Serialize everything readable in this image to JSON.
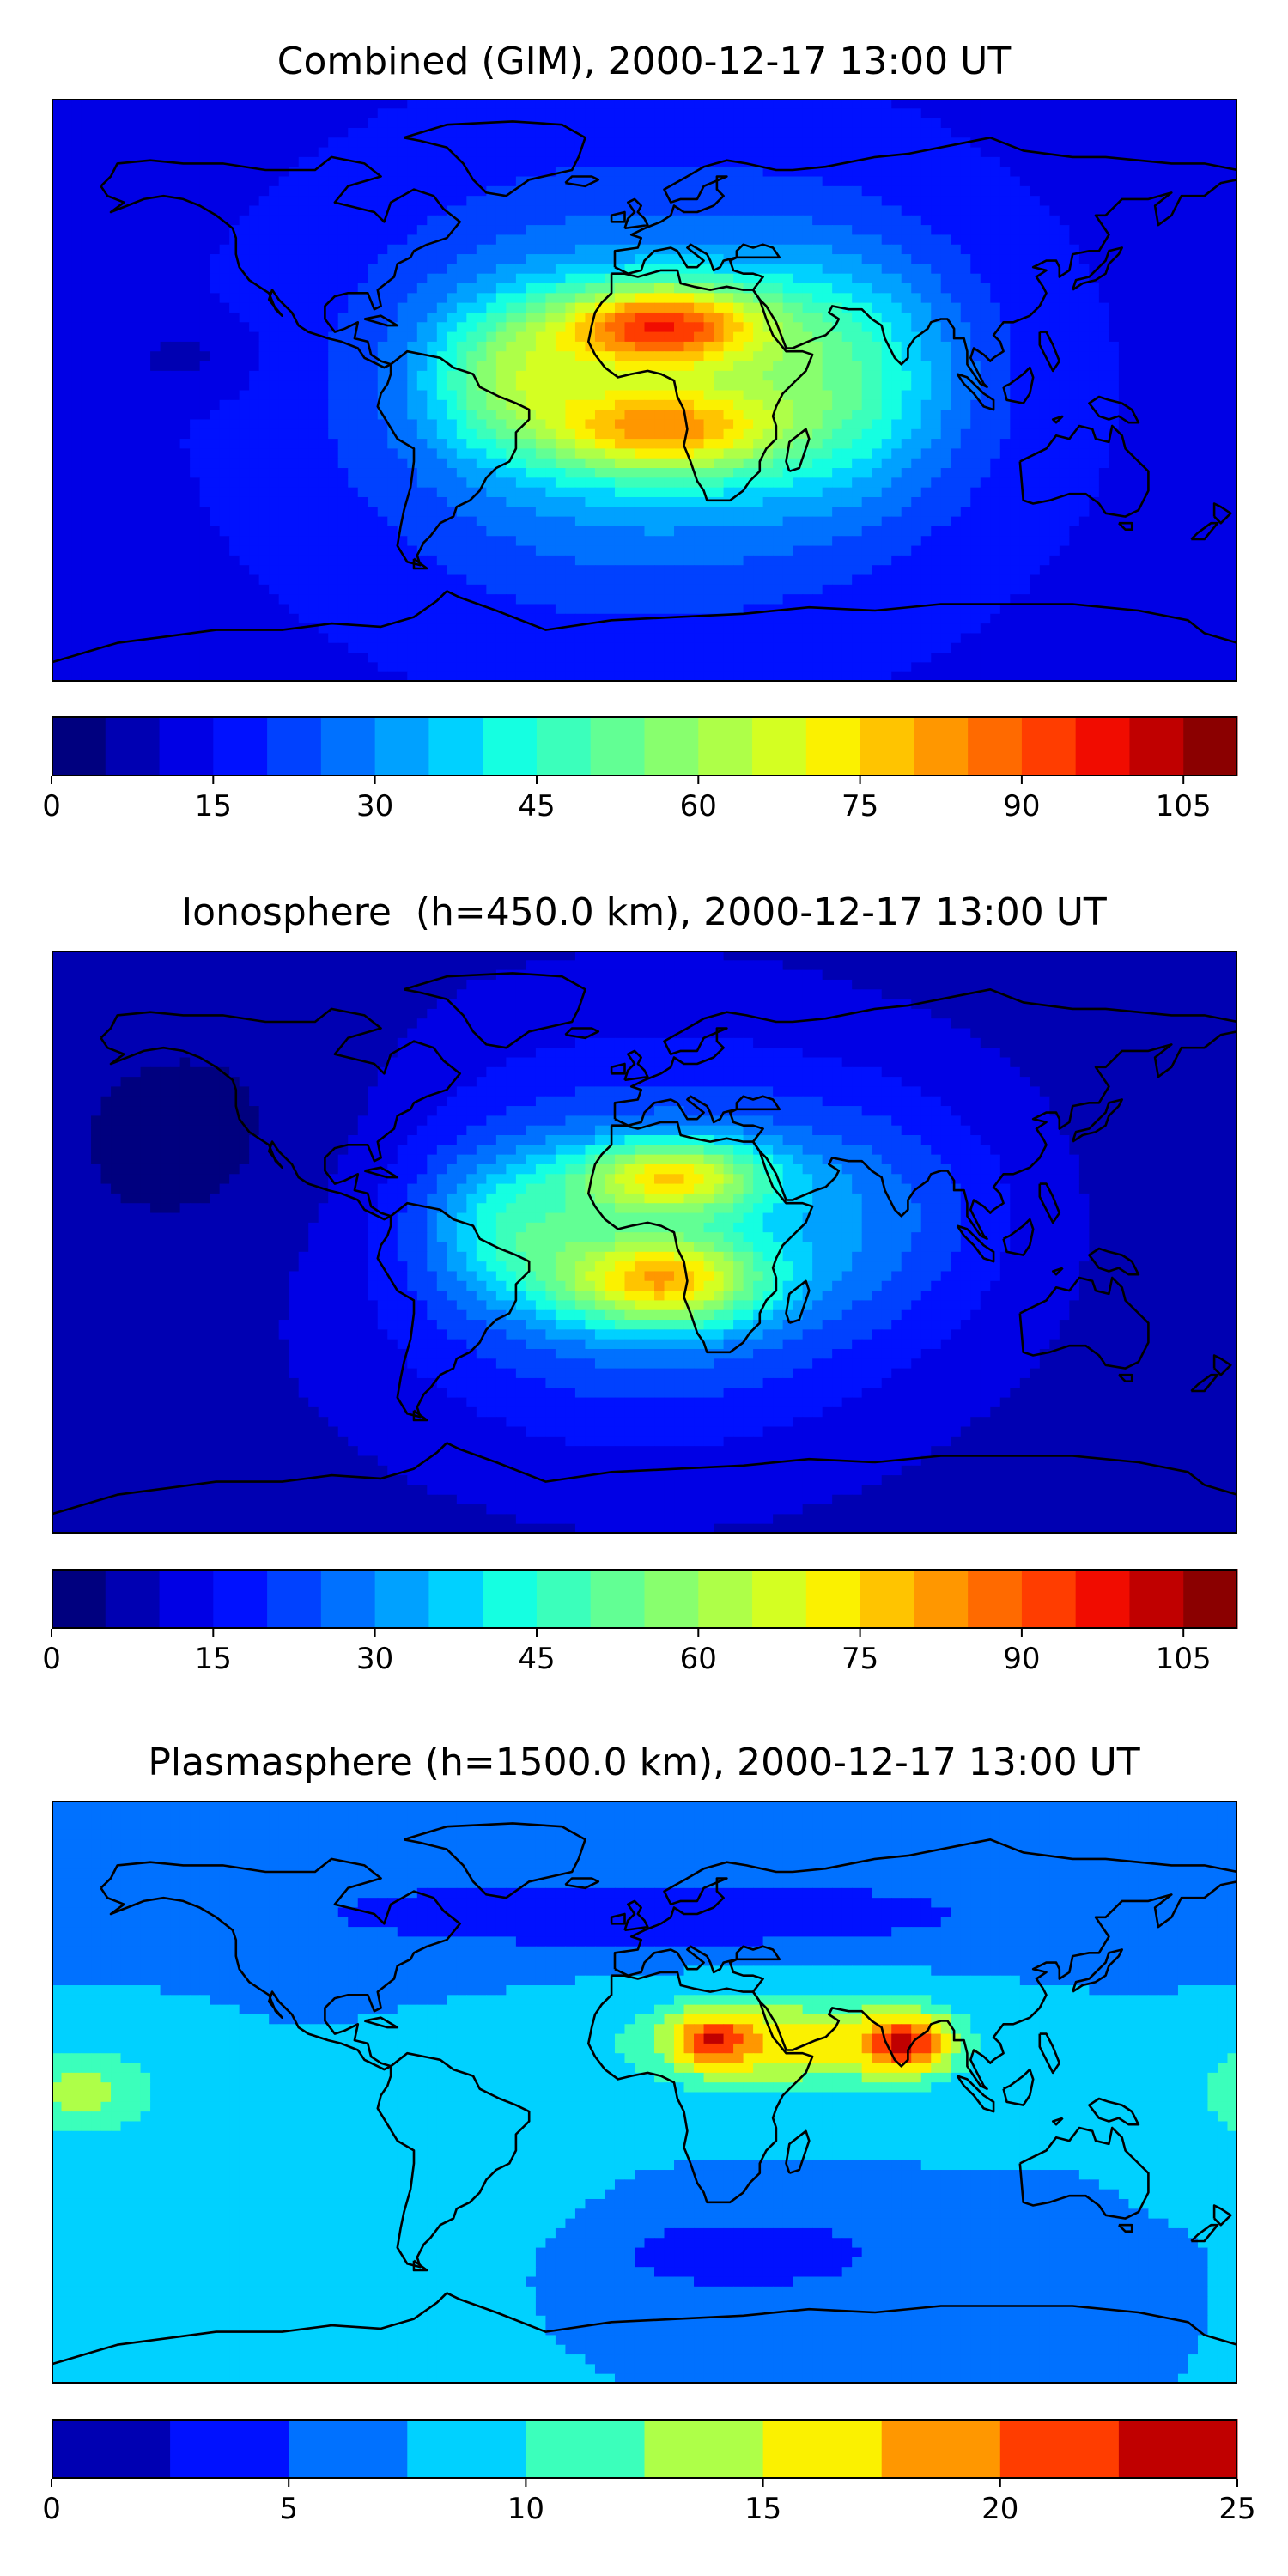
{
  "chart_data": [
    {
      "type": "heatmap",
      "title": "Combined (GIM), 2000-12-17 13:00 UT",
      "colorbar": {
        "min": 0,
        "max": 110,
        "levels": 22,
        "ticks": [
          0,
          15,
          30,
          45,
          60,
          75,
          90,
          105
        ],
        "tick_labels": [
          "0",
          "15",
          "30",
          "45",
          "60",
          "75",
          "90",
          "105"
        ],
        "colors": [
          "#00007f",
          "#0000b2",
          "#0000e5",
          "#0011ff",
          "#0041ff",
          "#0071ff",
          "#00a1ff",
          "#00d1ff",
          "#15ffe1",
          "#3bffbb",
          "#62ff94",
          "#88ff6e",
          "#aeff48",
          "#d4ff22",
          "#fbf100",
          "#ffc400",
          "#ff9700",
          "#ff6a00",
          "#ff3d00",
          "#f10c00",
          "#c00000",
          "#8b0000"
        ]
      },
      "field": {
        "base": 14,
        "blobs": [
          {
            "lon": 0,
            "lat": 0,
            "amp": 28,
            "slon": 55,
            "slat": 40
          },
          {
            "lon": 5,
            "lat": 20,
            "amp": 55,
            "slon": 22,
            "slat": 9
          },
          {
            "lon": 5,
            "lat": -12,
            "amp": 42,
            "slon": 25,
            "slat": 10
          },
          {
            "lon": -40,
            "lat": 5,
            "amp": 25,
            "slon": 18,
            "slat": 15
          },
          {
            "lon": 60,
            "lat": 5,
            "amp": 22,
            "slon": 25,
            "slat": 25
          },
          {
            "lon": -140,
            "lat": 10,
            "amp": -6,
            "slon": 15,
            "slat": 8
          }
        ]
      }
    },
    {
      "type": "heatmap",
      "title": "Ionosphere  (h=450.0 km), 2000-12-17 13:00 UT",
      "colorbar": {
        "min": 0,
        "max": 110,
        "levels": 22,
        "ticks": [
          0,
          15,
          30,
          45,
          60,
          75,
          90,
          105
        ],
        "tick_labels": [
          "0",
          "15",
          "30",
          "45",
          "60",
          "75",
          "90",
          "105"
        ],
        "colors": [
          "#00007f",
          "#0000b2",
          "#0000e5",
          "#0011ff",
          "#0041ff",
          "#0071ff",
          "#00a1ff",
          "#00d1ff",
          "#15ffe1",
          "#3bffbb",
          "#62ff94",
          "#88ff6e",
          "#aeff48",
          "#d4ff22",
          "#fbf100",
          "#ffc400",
          "#ff9700",
          "#ff6a00",
          "#ff3d00",
          "#f10c00",
          "#c00000",
          "#8b0000"
        ]
      },
      "field": {
        "base": 8,
        "blobs": [
          {
            "lon": 0,
            "lat": 0,
            "amp": 25,
            "slon": 55,
            "slat": 40
          },
          {
            "lon": 8,
            "lat": 20,
            "amp": 44,
            "slon": 20,
            "slat": 8
          },
          {
            "lon": 5,
            "lat": -12,
            "amp": 48,
            "slon": 22,
            "slat": 10
          },
          {
            "lon": -40,
            "lat": 5,
            "amp": 20,
            "slon": 18,
            "slat": 15
          },
          {
            "lon": 70,
            "lat": 10,
            "amp": 10,
            "slon": 30,
            "slat": 25
          },
          {
            "lon": -130,
            "lat": 30,
            "amp": -5,
            "slon": 40,
            "slat": 30
          }
        ]
      }
    },
    {
      "type": "heatmap",
      "title": "Plasmasphere (h=1500.0 km), 2000-12-17 13:00 UT",
      "colorbar": {
        "min": 0,
        "max": 25,
        "levels": 10,
        "ticks": [
          0,
          5,
          10,
          15,
          20,
          25
        ],
        "tick_labels": [
          "0",
          "5",
          "10",
          "15",
          "20",
          "25"
        ],
        "colors": [
          "#0000b2",
          "#0011ff",
          "#0071ff",
          "#00d1ff",
          "#3bffbb",
          "#aeff48",
          "#fbf100",
          "#ff9700",
          "#ff3d00",
          "#c00000"
        ]
      },
      "field": {
        "base": 7.5,
        "blobs": [
          {
            "lon": 40,
            "lat": 15,
            "amp": 9,
            "slon": 30,
            "slat": 10
          },
          {
            "lon": 80,
            "lat": 15,
            "amp": 12,
            "slon": 10,
            "slat": 7
          },
          {
            "lon": 20,
            "lat": 16,
            "amp": 8,
            "slon": 8,
            "slat": 6
          },
          {
            "lon": -170,
            "lat": 0,
            "amp": 6,
            "slon": 15,
            "slat": 10
          },
          {
            "lon": 0,
            "lat": 55,
            "amp": -5,
            "slon": 80,
            "slat": 8
          },
          {
            "lon": 30,
            "lat": -50,
            "amp": -5,
            "slon": 30,
            "slat": 8
          },
          {
            "lon": -60,
            "lat": -45,
            "amp": 1,
            "slon": 30,
            "slat": 10
          }
        ]
      }
    }
  ]
}
